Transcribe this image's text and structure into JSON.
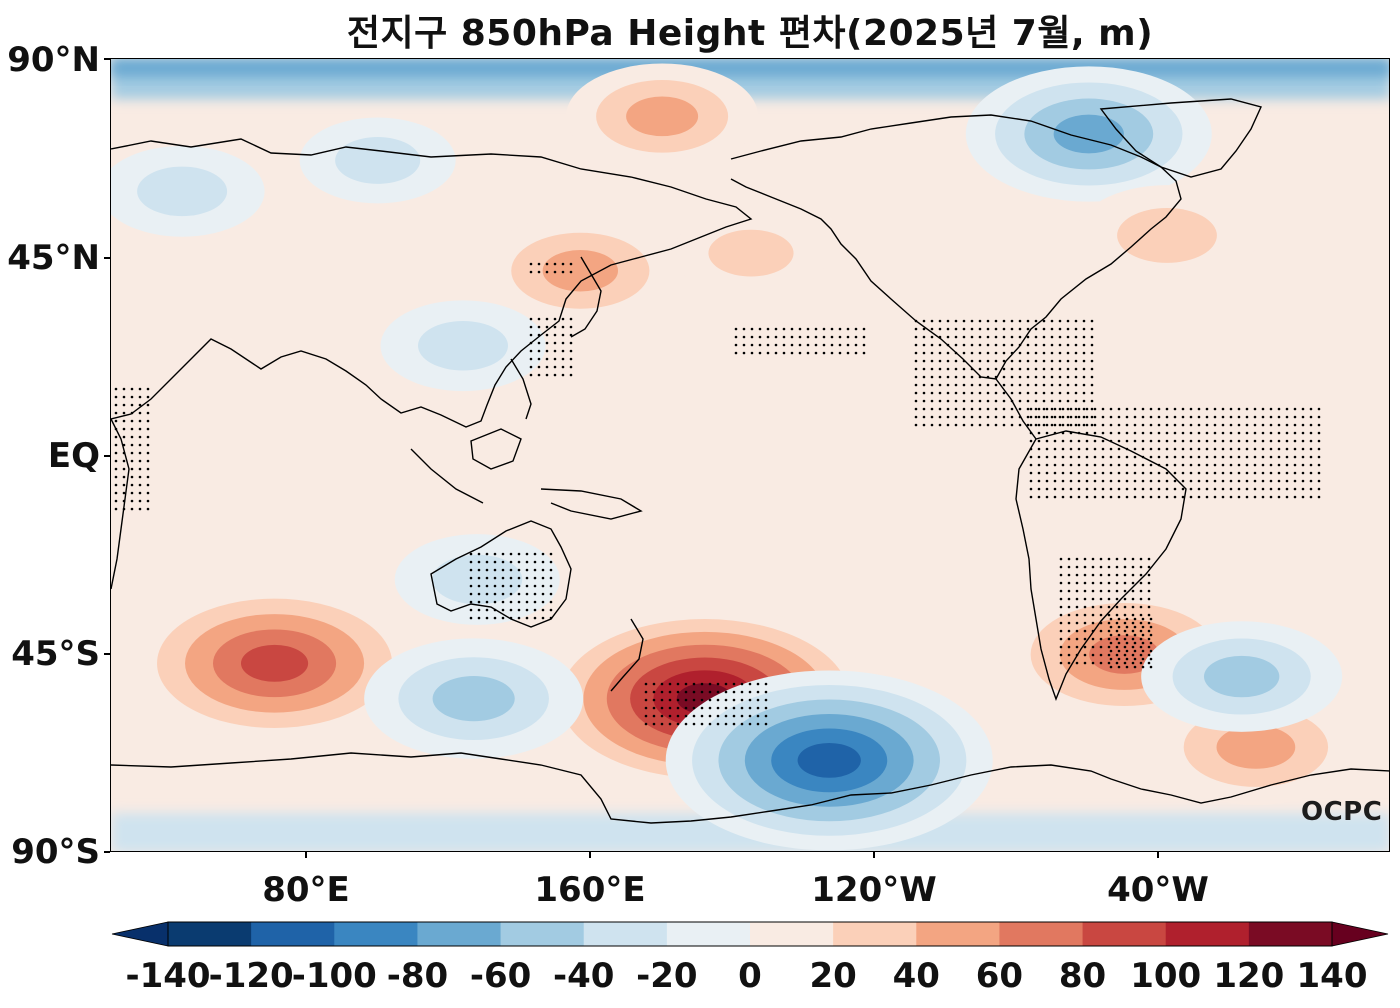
{
  "title": "전지구 850hPa Height 편차(2025년 7월, m)",
  "logo": "OCPC",
  "y_ticks": [
    "90°N",
    "45°N",
    "EQ",
    "45°S",
    "90°S"
  ],
  "x_ticks": [
    "80°E",
    "160°E",
    "120°W",
    "40°W"
  ],
  "colorbar": {
    "levels": [
      -140,
      -120,
      -100,
      -80,
      -60,
      -40,
      -20,
      0,
      20,
      40,
      60,
      80,
      100,
      120,
      140
    ],
    "labels": [
      "-140",
      "-120",
      "-100",
      "-80",
      "-60",
      "-40",
      "-20",
      "0",
      "20",
      "40",
      "60",
      "80",
      "100",
      "120",
      "140"
    ],
    "colors": [
      "#0a3b70",
      "#1f63a8",
      "#3a86c1",
      "#6aa9d1",
      "#a2cbe2",
      "#cfe3ef",
      "#e9f0f4",
      "#f9ebe3",
      "#fbd0b9",
      "#f3a582",
      "#e17860",
      "#c94741",
      "#b0202d",
      "#7a0b24"
    ],
    "extend": "both"
  },
  "map_extent": {
    "lon_min": 25,
    "lon_max": 385,
    "lat_min": -90,
    "lat_max": 90
  },
  "anomalies": [
    {
      "lon": 71,
      "lat": -47,
      "value": 95
    },
    {
      "lon": 192,
      "lat": -55,
      "value": 120
    },
    {
      "lon": 227,
      "lat": -69,
      "value": -115
    },
    {
      "lon": 310,
      "lat": -45,
      "value": 70
    },
    {
      "lon": 347,
      "lat": -66,
      "value": 50
    },
    {
      "lon": 343,
      "lat": -50,
      "value": -45
    },
    {
      "lon": 127,
      "lat": -55,
      "value": -55
    },
    {
      "lon": 300,
      "lat": 73,
      "value": -70
    },
    {
      "lon": 180,
      "lat": 77,
      "value": 40
    },
    {
      "lon": 157,
      "lat": 42,
      "value": 45
    },
    {
      "lon": 124,
      "lat": 25,
      "value": -25
    },
    {
      "lon": 322,
      "lat": 50,
      "value": 35
    },
    {
      "lon": 45,
      "lat": 60,
      "value": -25
    },
    {
      "lon": 205,
      "lat": 46,
      "value": 20
    },
    {
      "lon": 100,
      "lat": 67,
      "value": -20
    },
    {
      "lon": 128,
      "lat": -28,
      "value": -25
    }
  ]
}
